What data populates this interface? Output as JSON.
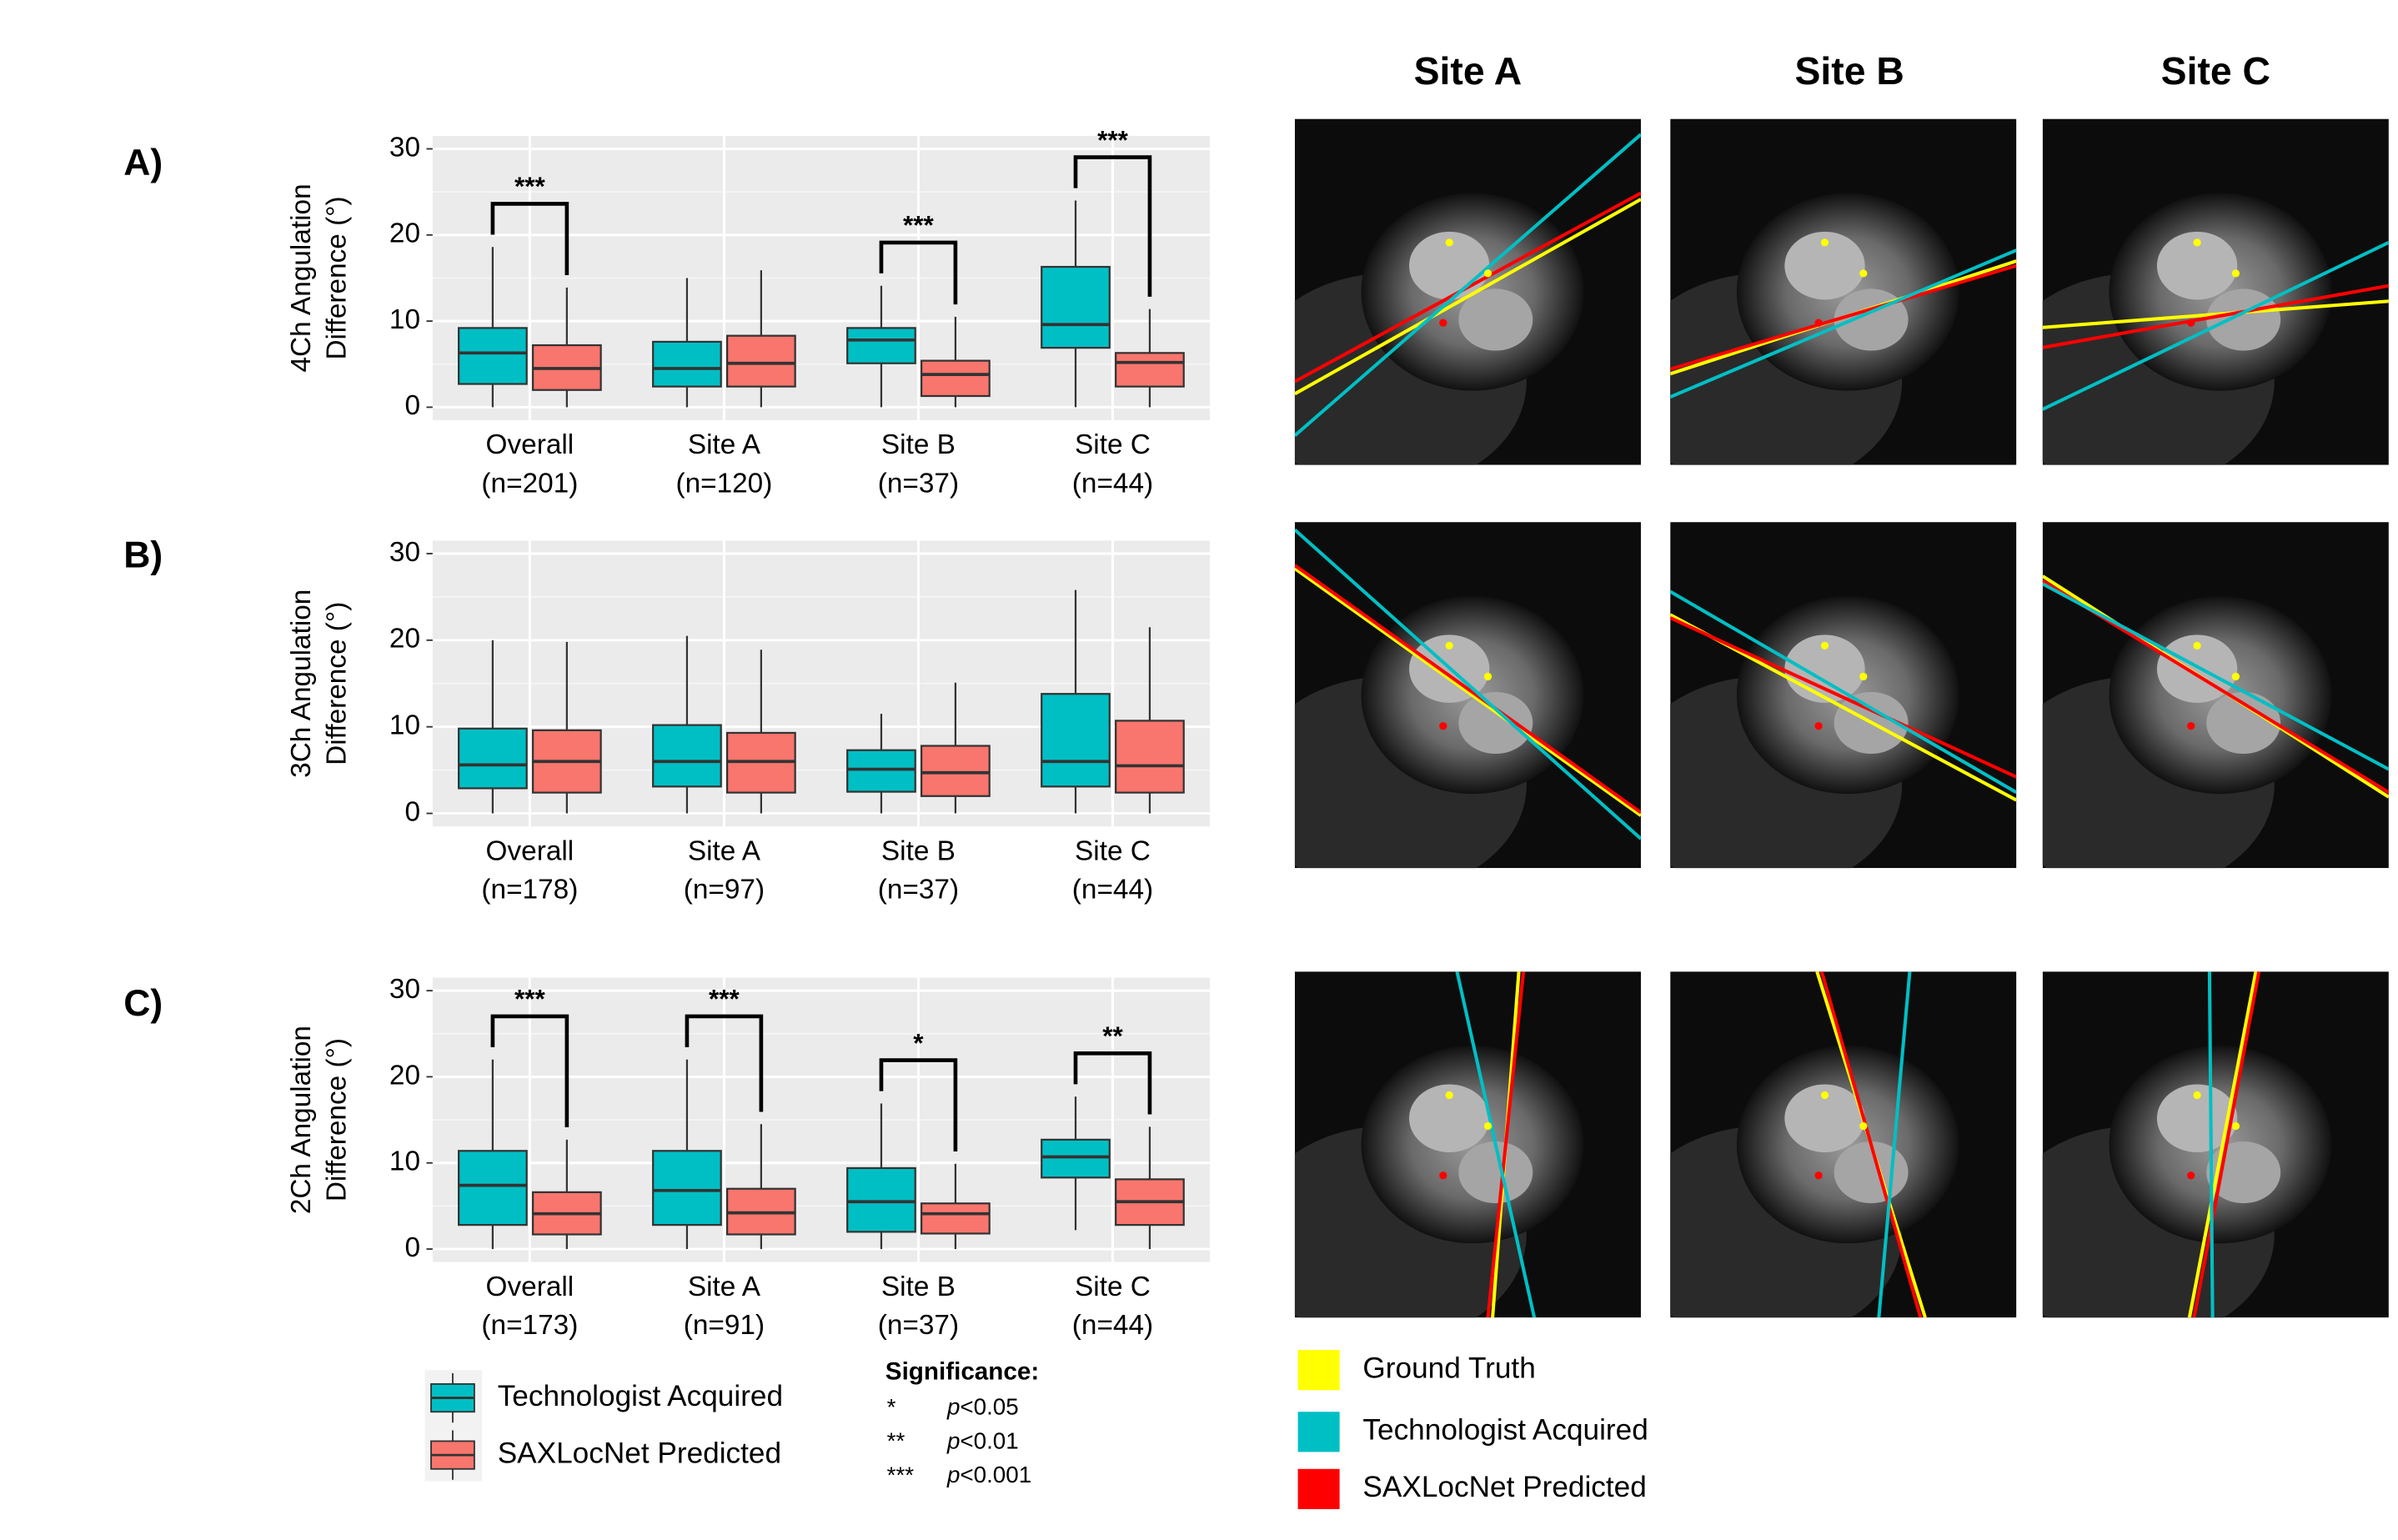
{
  "chart_data": [
    {
      "type": "box",
      "panel": "A)",
      "ylabel": [
        "4Ch Angulation",
        "Difference (°)"
      ],
      "categories": [
        [
          "Overall",
          "(n=201)"
        ],
        [
          "Site A",
          "(n=120)"
        ],
        [
          "Site B",
          "(n=37)"
        ],
        [
          "Site C",
          "(n=44)"
        ]
      ],
      "ylim": [
        -1.5,
        31.5
      ],
      "yticks": [
        0,
        10,
        20,
        30
      ],
      "grid": true,
      "series": [
        {
          "name": "Technologist Acquired",
          "color": "#00bfc4",
          "values": [
            {
              "min": 0,
              "q1": 2.7,
              "median": 6.3,
              "q3": 9.2,
              "max": 18.6
            },
            {
              "min": 0,
              "q1": 2.4,
              "median": 4.5,
              "q3": 7.6,
              "max": 15
            },
            {
              "min": 0,
              "q1": 5.1,
              "median": 7.8,
              "q3": 9.2,
              "max": 14.1
            },
            {
              "min": 0,
              "q1": 6.9,
              "median": 9.6,
              "q3": 16.3,
              "max": 24
            }
          ]
        },
        {
          "name": "SAXLocNet Predicted",
          "color": "#f8766d",
          "values": [
            {
              "min": 0,
              "q1": 2.0,
              "median": 4.5,
              "q3": 7.2,
              "max": 13.9
            },
            {
              "min": 0,
              "q1": 2.4,
              "median": 5.1,
              "q3": 8.3,
              "max": 15.9
            },
            {
              "min": 0,
              "q1": 1.3,
              "median": 3.8,
              "q3": 5.4,
              "max": 10.5
            },
            {
              "min": 0,
              "q1": 2.4,
              "median": 5.2,
              "q3": 6.3,
              "max": 11.4
            }
          ]
        }
      ],
      "significance": [
        "***",
        null,
        "***",
        "***"
      ]
    },
    {
      "type": "box",
      "panel": "B)",
      "ylabel": [
        "3Ch Angulation",
        "Difference (°)"
      ],
      "categories": [
        [
          "Overall",
          "(n=178)"
        ],
        [
          "Site A",
          "(n=97)"
        ],
        [
          "Site B",
          "(n=37)"
        ],
        [
          "Site C",
          "(n=44)"
        ]
      ],
      "ylim": [
        -1.5,
        31.5
      ],
      "yticks": [
        0,
        10,
        20,
        30
      ],
      "grid": true,
      "series": [
        {
          "color": "#00bfc4",
          "values": [
            {
              "min": 0,
              "q1": 2.9,
              "median": 5.6,
              "q3": 9.8,
              "max": 20
            },
            {
              "min": 0,
              "q1": 3.1,
              "median": 6,
              "q3": 10.2,
              "max": 20.5
            },
            {
              "min": 0,
              "q1": 2.5,
              "median": 5.1,
              "q3": 7.3,
              "max": 11.5
            },
            {
              "min": 0,
              "q1": 3.1,
              "median": 6,
              "q3": 13.8,
              "max": 25.8
            }
          ]
        },
        {
          "color": "#f8766d",
          "values": [
            {
              "min": 0,
              "q1": 2.4,
              "median": 6,
              "q3": 9.6,
              "max": 19.8
            },
            {
              "min": 0,
              "q1": 2.4,
              "median": 6,
              "q3": 9.3,
              "max": 18.9
            },
            {
              "min": 0,
              "q1": 2,
              "median": 4.7,
              "q3": 7.8,
              "max": 15.1
            },
            {
              "min": 0,
              "q1": 2.4,
              "median": 5.5,
              "q3": 10.7,
              "max": 21.5
            }
          ]
        }
      ],
      "significance": [
        null,
        null,
        null,
        null
      ]
    },
    {
      "type": "box",
      "panel": "C)",
      "ylabel": [
        "2Ch Angulation",
        "Difference (°)"
      ],
      "categories": [
        [
          "Overall",
          "(n=173)"
        ],
        [
          "Site A",
          "(n=91)"
        ],
        [
          "Site B",
          "(n=37)"
        ],
        [
          "Site C",
          "(n=44)"
        ]
      ],
      "ylim": [
        -1.5,
        31.5
      ],
      "yticks": [
        0,
        10,
        20,
        30
      ],
      "grid": true,
      "series": [
        {
          "color": "#00bfc4",
          "values": [
            {
              "min": 0,
              "q1": 2.8,
              "median": 7.4,
              "q3": 11.4,
              "max": 22
            },
            {
              "min": 0,
              "q1": 2.8,
              "median": 6.8,
              "q3": 11.4,
              "max": 22
            },
            {
              "min": 0,
              "q1": 2,
              "median": 5.5,
              "q3": 9.4,
              "max": 16.9
            },
            {
              "min": 2.2,
              "q1": 8.3,
              "median": 10.7,
              "q3": 12.7,
              "max": 17.7
            }
          ]
        },
        {
          "color": "#f8766d",
          "values": [
            {
              "min": 0,
              "q1": 1.7,
              "median": 4.1,
              "q3": 6.6,
              "max": 12.7
            },
            {
              "min": 0,
              "q1": 1.7,
              "median": 4.2,
              "q3": 7,
              "max": 14.5
            },
            {
              "min": 0,
              "q1": 1.8,
              "median": 4.1,
              "q3": 5.3,
              "max": 9.9
            },
            {
              "min": 0,
              "q1": 2.8,
              "median": 5.5,
              "q3": 8.1,
              "max": 14.2
            }
          ]
        }
      ],
      "significance": [
        "***",
        "***",
        "*",
        "**"
      ]
    }
  ],
  "significance_legend": {
    "title": "Significance:",
    "rows": [
      {
        "symbol": "*",
        "p": "p",
        "threshold": "<0.05"
      },
      {
        "symbol": "**",
        "p": "p",
        "threshold": "<0.01"
      },
      {
        "symbol": "***",
        "p": "p",
        "threshold": "<0.001"
      }
    ]
  },
  "images": {
    "columns": [
      "Site A",
      "Site B",
      "Site C"
    ],
    "legend": [
      {
        "label": "Ground Truth",
        "color": "#ffff00"
      },
      {
        "label": "Technologist Acquired",
        "color": "#00bfc4"
      },
      {
        "label": "SAXLocNet Predicted",
        "color": "#ff0000"
      }
    ]
  }
}
